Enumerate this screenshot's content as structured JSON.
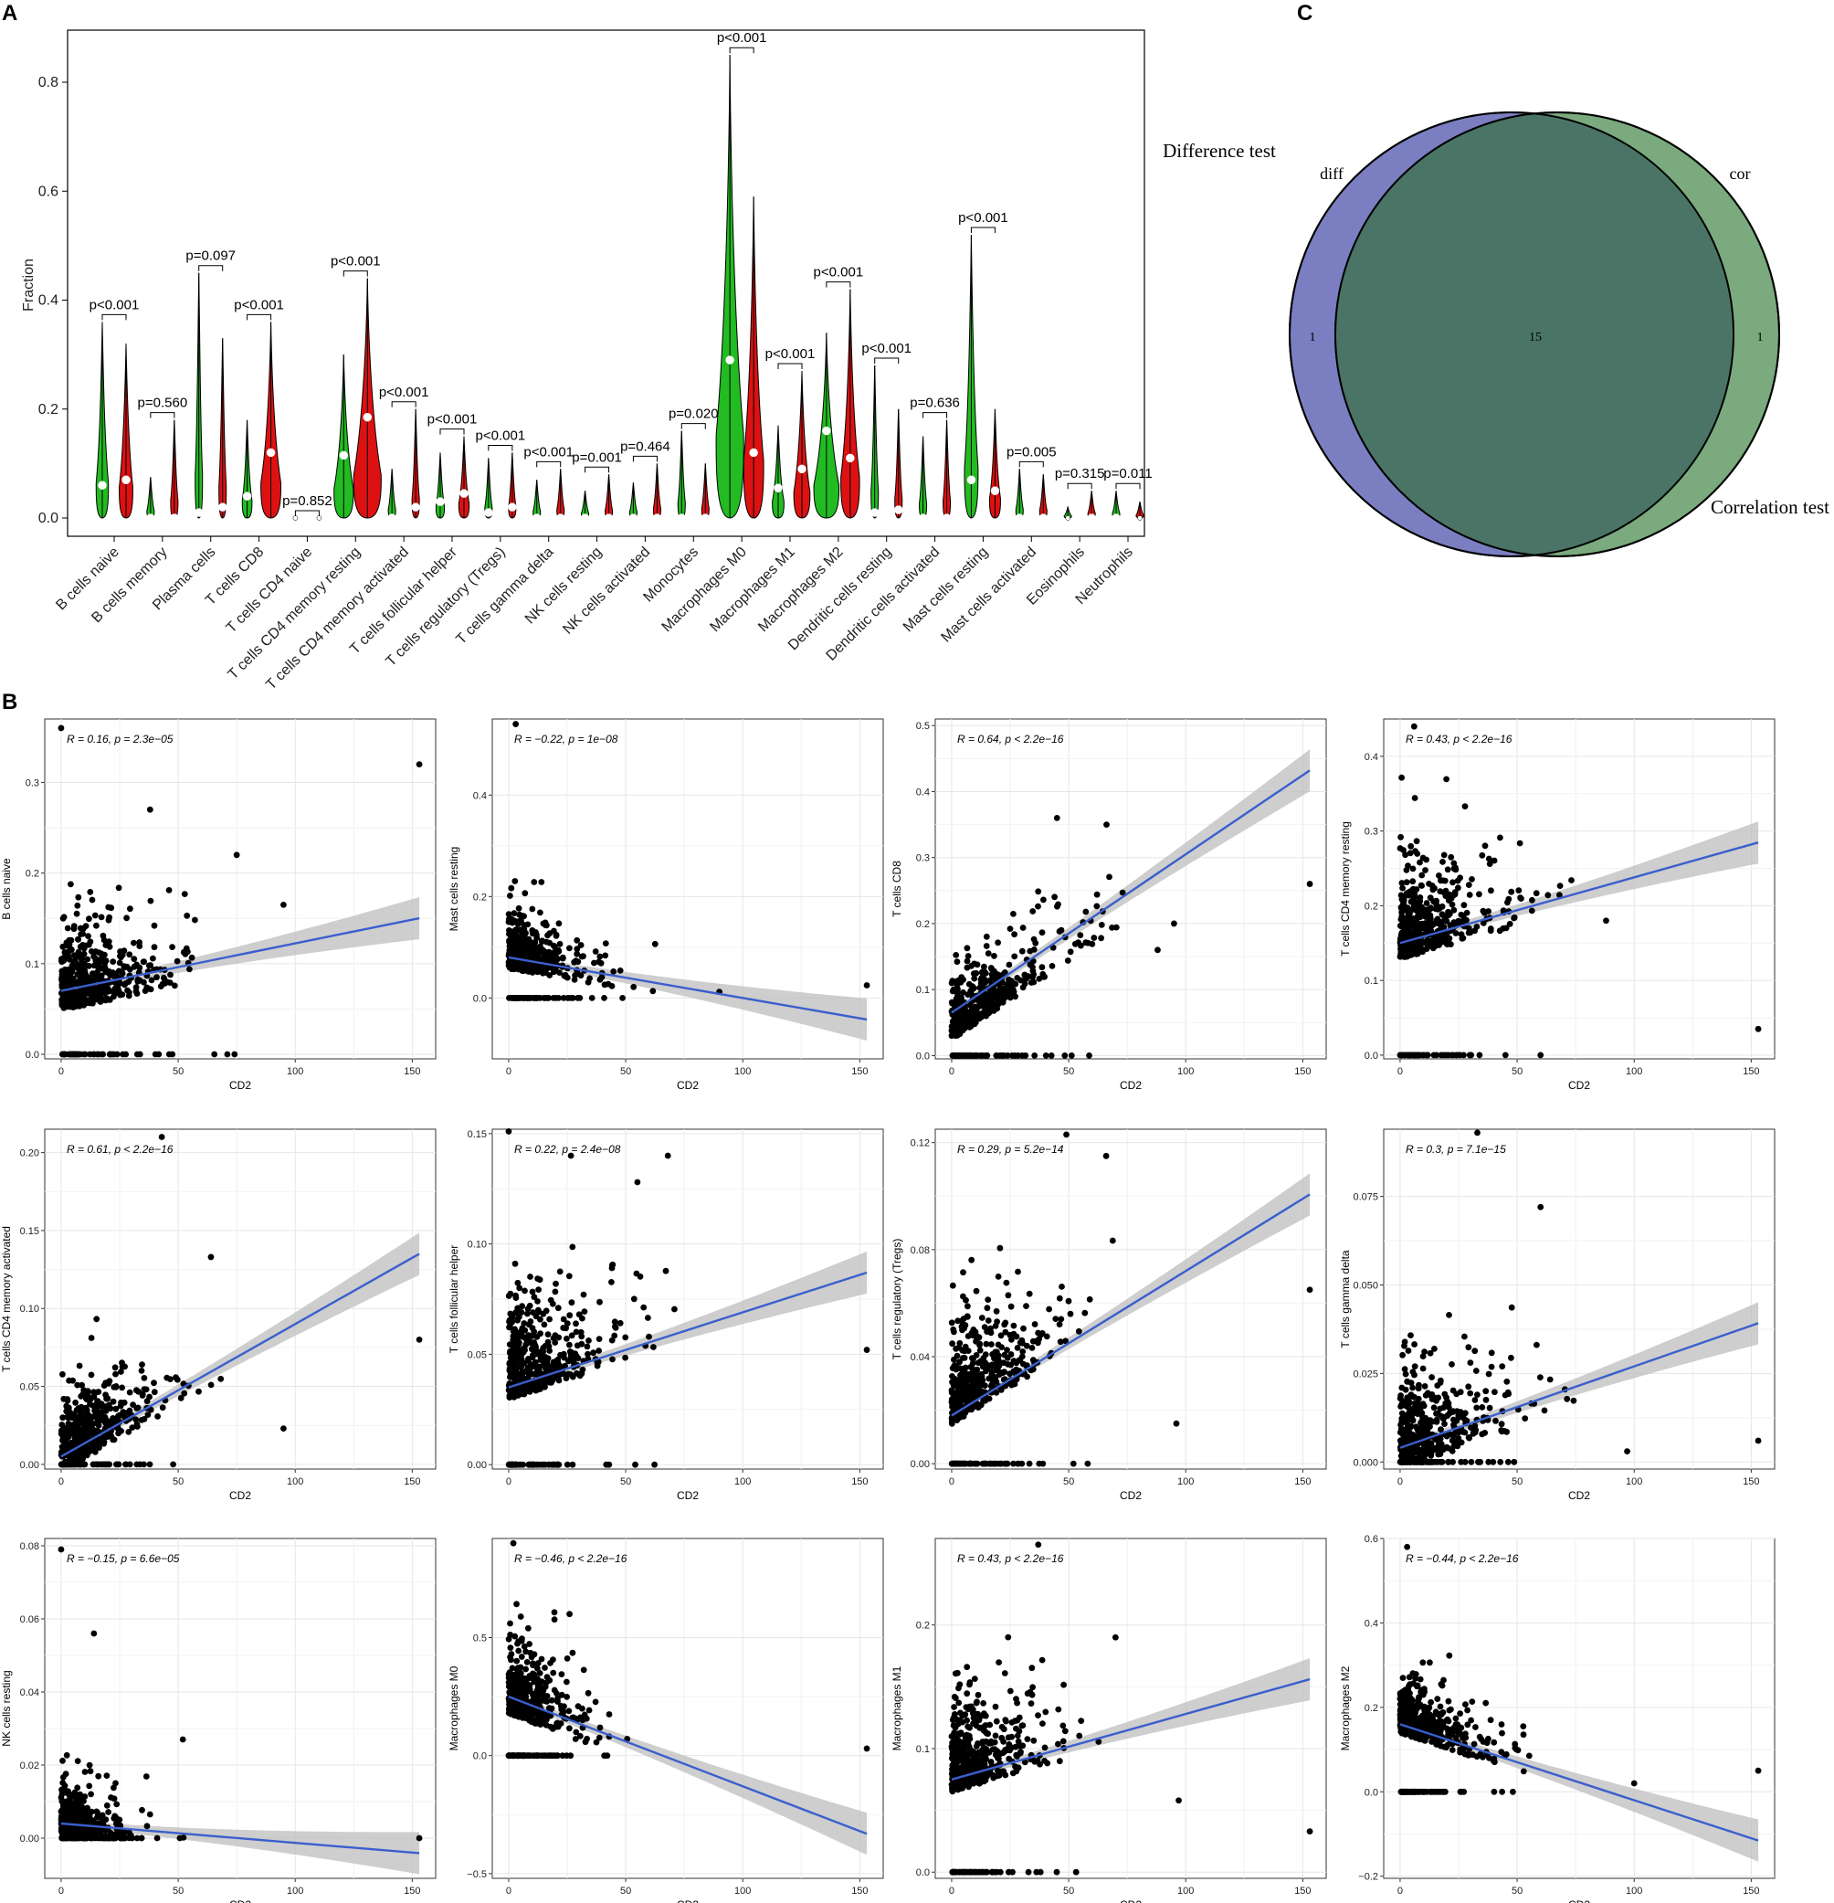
{
  "panels": {
    "a": "A",
    "b": "B",
    "c": "C"
  },
  "chart_data": [
    {
      "type": "violin",
      "panel": "A",
      "ylabel": "Fraction",
      "ylim": [
        0,
        0.9
      ],
      "yticks": [
        "0.0",
        "0.2",
        "0.4",
        "0.6",
        "0.8"
      ],
      "legend_title": "Difference test",
      "colors": [
        "#22bb22",
        "#dd1111"
      ],
      "categories": [
        "B cells naive",
        "B cells memory",
        "Plasma cells",
        "T cells CD8",
        "T cells CD4 naive",
        "T cells CD4 memory resting",
        "T cells CD4 memory activated",
        "T cells follicular helper",
        "T cells regulatory (Tregs)",
        "T cells gamma delta",
        "NK cells resting",
        "NK cells activated",
        "Monocytes",
        "Macrophages M0",
        "Macrophages M1",
        "Macrophages M2",
        "Dendritic cells resting",
        "Dendritic cells activated",
        "Mast cells resting",
        "Mast cells activated",
        "Eosinophils",
        "Neutrophils"
      ],
      "pvalues": [
        "p<0.001",
        "p=0.560",
        "p=0.097",
        "p<0.001",
        "p=0.852",
        "p<0.001",
        "p<0.001",
        "p<0.001",
        "p<0.001",
        "p<0.001",
        "p=0.001",
        "p=0.464",
        "p=0.020",
        "p<0.001",
        "p<0.001",
        "p<0.001",
        "p<0.001",
        "p=0.636",
        "p<0.001",
        "p=0.005",
        "p=0.315",
        "p=0.011"
      ],
      "group1_median": [
        0.06,
        0.0,
        0.01,
        0.04,
        0.0,
        0.115,
        0.0,
        0.03,
        0.01,
        0.0,
        0.0,
        0.0,
        0.0,
        0.29,
        0.055,
        0.16,
        0.01,
        0.0,
        0.07,
        0.0,
        0.0,
        0.0
      ],
      "group1_max": [
        0.36,
        0.075,
        0.45,
        0.18,
        0.0,
        0.3,
        0.09,
        0.12,
        0.11,
        0.07,
        0.05,
        0.065,
        0.16,
        0.85,
        0.17,
        0.34,
        0.28,
        0.15,
        0.52,
        0.09,
        0.02,
        0.05
      ],
      "group2_median": [
        0.07,
        0.0,
        0.02,
        0.12,
        0.0,
        0.185,
        0.02,
        0.045,
        0.02,
        0.0,
        0.0,
        0.0,
        0.0,
        0.12,
        0.09,
        0.11,
        0.015,
        0.0,
        0.05,
        0.0,
        0.0,
        0.0
      ],
      "group2_max": [
        0.32,
        0.18,
        0.33,
        0.36,
        0.0,
        0.44,
        0.2,
        0.15,
        0.12,
        0.09,
        0.08,
        0.1,
        0.1,
        0.59,
        0.27,
        0.42,
        0.2,
        0.18,
        0.2,
        0.08,
        0.05,
        0.03
      ]
    },
    {
      "type": "scatter",
      "panel": "B",
      "xlabel": "CD2",
      "xticks": [
        "0",
        "50",
        "100",
        "150"
      ],
      "subplots": [
        {
          "ylabel": "B cells naive",
          "annotation": "R = 0.16, p = 2.3e−05",
          "yticks": [
            "0.0",
            "0.1",
            "0.2",
            "0.3"
          ],
          "ylim": [
            -0.005,
            0.37
          ],
          "fit": [
            0.07,
            0.000524
          ],
          "n_points": 500,
          "x_scale": 14,
          "y_mean": 0.055,
          "y_sd": 0.05,
          "y_floor": 0.0,
          "y_max": 0.34,
          "extra": [
            [
              0,
              0.36
            ],
            [
              153,
              0.32
            ],
            [
              75,
              0.22
            ],
            [
              95,
              0.165
            ],
            [
              38,
              0.27
            ]
          ]
        },
        {
          "ylabel": "Mast cells resting",
          "annotation": "R = −0.22, p = 1e−08",
          "yticks": [
            "0.0",
            "0.2",
            "0.4"
          ],
          "ylim": [
            -0.12,
            0.55
          ],
          "fit": [
            0.08,
            -0.0008
          ],
          "n_points": 500,
          "x_scale": 12,
          "y_mean": 0.07,
          "y_sd": 0.06,
          "y_floor": 0.0,
          "y_max": 0.33,
          "extra": [
            [
              3,
              0.54
            ],
            [
              153,
              0.025
            ],
            [
              90,
              0.012
            ]
          ]
        },
        {
          "ylabel": "T cells CD8",
          "annotation": "R = 0.64, p < 2.2e−16",
          "yticks": [
            "0.0",
            "0.1",
            "0.2",
            "0.3",
            "0.4",
            "0.5"
          ],
          "ylim": [
            -0.005,
            0.51
          ],
          "fit": [
            0.065,
            0.0024
          ],
          "n_points": 500,
          "x_scale": 14,
          "y_mean": 0.0,
          "y_sd": 0.05,
          "y_floor": 0.0,
          "y_max": 0.35,
          "extra": [
            [
              45,
              0.36
            ],
            [
              153,
              0.26
            ],
            [
              95,
              0.2
            ],
            [
              88,
              0.16
            ]
          ]
        },
        {
          "ylabel": "T cells CD4 memory resting",
          "annotation": "R = 0.43, p < 2.2e−16",
          "yticks": [
            "0.0",
            "0.1",
            "0.2",
            "0.3",
            "0.4"
          ],
          "ylim": [
            -0.005,
            0.45
          ],
          "fit": [
            0.15,
            0.00088
          ],
          "n_points": 500,
          "x_scale": 14,
          "y_mean": 0.15,
          "y_sd": 0.07,
          "y_floor": 0.0,
          "y_max": 0.38,
          "extra": [
            [
              6,
              0.44
            ],
            [
              153,
              0.035
            ],
            [
              60,
              0.0
            ],
            [
              88,
              0.18
            ]
          ]
        },
        {
          "ylabel": "T cells CD4 memory activated",
          "annotation": "R = 0.61, p < 2.2e−16",
          "yticks": [
            "0.00",
            "0.05",
            "0.10",
            "0.15",
            "0.20"
          ],
          "ylim": [
            -0.003,
            0.215
          ],
          "fit": [
            0.005,
            0.00085
          ],
          "n_points": 500,
          "x_scale": 14,
          "y_mean": 0.0,
          "y_sd": 0.025,
          "y_floor": 0.0,
          "y_max": 0.13,
          "extra": [
            [
              43,
              0.21
            ],
            [
              153,
              0.08
            ],
            [
              95,
              0.023
            ],
            [
              64,
              0.133
            ]
          ]
        },
        {
          "ylabel": "T cells follicular helper",
          "annotation": "R = 0.22, p = 2.4e−08",
          "yticks": [
            "0.00",
            "0.05",
            "0.10",
            "0.15"
          ],
          "ylim": [
            -0.002,
            0.152
          ],
          "fit": [
            0.035,
            0.00034
          ],
          "n_points": 500,
          "x_scale": 14,
          "y_mean": 0.04,
          "y_sd": 0.025,
          "y_floor": 0.0,
          "y_max": 0.14,
          "extra": [
            [
              0,
              0.151
            ],
            [
              153,
              0.052
            ],
            [
              68,
              0.14
            ],
            [
              55,
              0.128
            ]
          ]
        },
        {
          "ylabel": "T cells regulatory (Tregs)",
          "annotation": "R = 0.29, p = 5.2e−14",
          "yticks": [
            "0.00",
            "0.04",
            "0.08",
            "0.12"
          ],
          "ylim": [
            -0.002,
            0.125
          ],
          "fit": [
            0.018,
            0.00054
          ],
          "n_points": 500,
          "x_scale": 14,
          "y_mean": 0.025,
          "y_sd": 0.02,
          "y_floor": 0.0,
          "y_max": 0.11,
          "extra": [
            [
              49,
              0.123
            ],
            [
              153,
              0.065
            ],
            [
              96,
              0.015
            ],
            [
              66,
              0.115
            ]
          ]
        },
        {
          "ylabel": "T cells gamma delta",
          "annotation": "R = 0.3, p = 7.1e−15",
          "yticks": [
            "0.000",
            "0.025",
            "0.050",
            "0.075"
          ],
          "ylim": [
            -0.002,
            0.094
          ],
          "fit": [
            0.004,
            0.00023
          ],
          "n_points": 500,
          "x_scale": 14,
          "y_mean": 0.0,
          "y_sd": 0.015,
          "y_floor": 0.0,
          "y_max": 0.075,
          "extra": [
            [
              33,
              0.093
            ],
            [
              153,
              0.006
            ],
            [
              97,
              0.003
            ],
            [
              60,
              0.072
            ]
          ]
        },
        {
          "ylabel": "NK cells resting",
          "annotation": "R = −0.15, p = 6.6e−05",
          "yticks": [
            "0.00",
            "0.02",
            "0.04",
            "0.06",
            "0.08"
          ],
          "ylim": [
            -0.011,
            0.082
          ],
          "fit": [
            0.004,
            -5.3e-05
          ],
          "n_points": 500,
          "x_scale": 10,
          "y_mean": 0.0,
          "y_sd": 0.008,
          "y_floor": 0.0,
          "y_max": 0.06,
          "extra": [
            [
              0,
              0.079
            ],
            [
              153,
              0.0
            ],
            [
              14,
              0.056
            ],
            [
              52,
              0.027
            ]
          ]
        },
        {
          "ylabel": "Macrophages M0",
          "annotation": "R = −0.46, p < 2.2e−16",
          "yticks": [
            "−0.5",
            "0.0",
            "0.5"
          ],
          "ylim": [
            -0.52,
            0.92
          ],
          "fit": [
            0.25,
            -0.0038
          ],
          "n_points": 500,
          "x_scale": 10,
          "y_mean": 0.2,
          "y_sd": 0.17,
          "y_floor": 0.0,
          "y_max": 0.65,
          "extra": [
            [
              2,
              0.9
            ],
            [
              153,
              0.03
            ],
            [
              26,
              0.6
            ]
          ]
        },
        {
          "ylabel": "Macrophages M1",
          "annotation": "R = 0.43, p < 2.2e−16",
          "yticks": [
            "0.0",
            "0.1",
            "0.2"
          ],
          "ylim": [
            -0.005,
            0.27
          ],
          "fit": [
            0.075,
            0.00053
          ],
          "n_points": 500,
          "x_scale": 12,
          "y_mean": 0.08,
          "y_sd": 0.04,
          "y_floor": 0.0,
          "y_max": 0.21,
          "extra": [
            [
              37,
              0.265
            ],
            [
              153,
              0.033
            ],
            [
              70,
              0.19
            ],
            [
              97,
              0.058
            ]
          ]
        },
        {
          "ylabel": "Macrophages M2",
          "annotation": "R = −0.44, p < 2.2e−16",
          "yticks": [
            "−0.2",
            "0.0",
            "0.2",
            "0.4",
            "0.6"
          ],
          "ylim": [
            -0.205,
            0.6
          ],
          "fit": [
            0.16,
            -0.0018
          ],
          "n_points": 500,
          "x_scale": 12,
          "y_mean": 0.16,
          "y_sd": 0.07,
          "y_floor": 0.0,
          "y_max": 0.45,
          "extra": [
            [
              3,
              0.58
            ],
            [
              153,
              0.05
            ],
            [
              100,
              0.02
            ]
          ]
        }
      ]
    },
    {
      "type": "venn",
      "panel": "C",
      "sets": [
        "diff",
        "cor"
      ],
      "only_diff": "1",
      "both": "15",
      "only_cor": "1",
      "titles": [
        "Difference test",
        "Correlation test"
      ],
      "colors": [
        "#7b7fc2",
        "#4a7566",
        "#7aaa7e"
      ]
    }
  ]
}
